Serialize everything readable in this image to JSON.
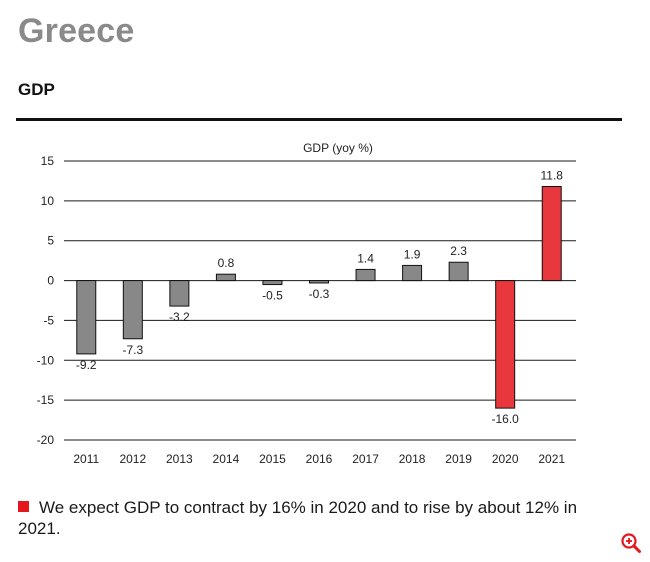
{
  "header": {
    "title": "Greece",
    "section": "GDP"
  },
  "chart_data": {
    "type": "bar",
    "title": "GDP (yoy %)",
    "xlabel": "",
    "ylabel": "",
    "categories": [
      "2011",
      "2012",
      "2013",
      "2014",
      "2015",
      "2016",
      "2017",
      "2018",
      "2019",
      "2020",
      "2021"
    ],
    "values": [
      -9.2,
      -7.3,
      -3.2,
      0.8,
      -0.5,
      -0.3,
      1.4,
      1.9,
      2.3,
      -16.0,
      11.8
    ],
    "data_labels": [
      "-9.2",
      "-7.3",
      "-3.2",
      "0.8",
      "-0.5",
      "-0.3",
      "1.4",
      "1.9",
      "2.3",
      "-16.0",
      "11.8"
    ],
    "highlighted_categories": [
      "2020",
      "2021"
    ],
    "ylim": [
      -20,
      15
    ],
    "yticks": [
      15,
      10,
      5,
      0,
      -5,
      -10,
      -15,
      -20
    ],
    "grid": true,
    "colors": {
      "actual": "#888888",
      "forecast": "#e8383d",
      "grid": "#1a1a1a"
    }
  },
  "footer": {
    "note": "We expect GDP to contract by 16% in 2020 and to rise by about 12% in 2021.",
    "bullet_color": "#e4161e"
  },
  "controls": {
    "zoom_icon": "zoom-in-icon"
  }
}
